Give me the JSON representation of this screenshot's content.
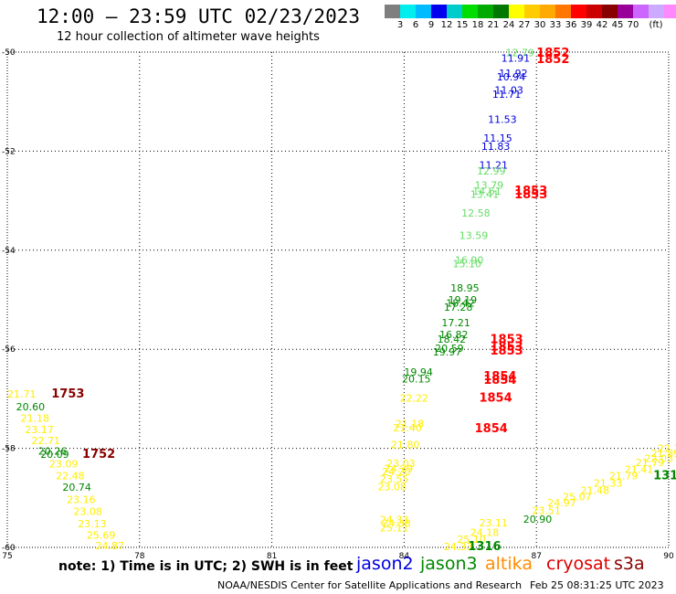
{
  "title": "12:00 – 23:59 UTC 02/23/2023",
  "subtitle": "12 hour collection of altimeter wave heights",
  "legend": {
    "colors": [
      "#7f7f7f",
      "#00eeee",
      "#00bbff",
      "#0000ee",
      "#00cccc",
      "#00dd00",
      "#00aa00",
      "#007700",
      "#ffff00",
      "#ffcc00",
      "#ffaa00",
      "#ff7700",
      "#ff0000",
      "#cc0000",
      "#880000",
      "#990099",
      "#cc66ff",
      "#ccaaff",
      "#ff88ff",
      "#000000"
    ],
    "labels": [
      "3",
      "6",
      "9",
      "12",
      "15",
      "18",
      "21",
      "24",
      "27",
      "30",
      "33",
      "36",
      "39",
      "42",
      "45",
      "70",
      "(ft)"
    ]
  },
  "axes": {
    "x_ticks": [
      "75",
      "78",
      "81",
      "84",
      "87",
      "90"
    ],
    "y_ticks": [
      "-50",
      "-52",
      "-54",
      "-56",
      "-58",
      "-60"
    ]
  },
  "annotations": [
    {
      "t": "12.79",
      "c": "#66dd66",
      "lon": 86.3,
      "lat": -50.01
    },
    {
      "t": "11.91",
      "c": "#0000dd",
      "lon": 86.2,
      "lat": -50.12
    },
    {
      "t": "1852",
      "c": "#ff0000",
      "lon": 87.0,
      "lat": -50.02,
      "big": true
    },
    {
      "t": "1852",
      "c": "#ff0000",
      "lon": 87.0,
      "lat": -50.15,
      "big": true
    },
    {
      "t": "11.92",
      "c": "#0000dd",
      "lon": 86.15,
      "lat": -50.42
    },
    {
      "t": "10.94",
      "c": "#0000dd",
      "lon": 86.1,
      "lat": -50.5
    },
    {
      "t": "11.03",
      "c": "#0000dd",
      "lon": 86.05,
      "lat": -50.77
    },
    {
      "t": "11.71",
      "c": "#0000dd",
      "lon": 86.0,
      "lat": -50.85
    },
    {
      "t": "11.53",
      "c": "#0000dd",
      "lon": 85.9,
      "lat": -51.36
    },
    {
      "t": "11.15",
      "c": "#0000dd",
      "lon": 85.8,
      "lat": -51.73
    },
    {
      "t": "11.83",
      "c": "#0000dd",
      "lon": 85.75,
      "lat": -51.9
    },
    {
      "t": "11.21",
      "c": "#0000dd",
      "lon": 85.7,
      "lat": -52.28
    },
    {
      "t": "12.99",
      "c": "#66dd66",
      "lon": 85.65,
      "lat": -52.4
    },
    {
      "t": "13.79",
      "c": "#66dd66",
      "lon": 85.6,
      "lat": -52.68
    },
    {
      "t": "14.61",
      "c": "#66dd66",
      "lon": 85.55,
      "lat": -52.8
    },
    {
      "t": "13.41",
      "c": "#66dd66",
      "lon": 85.5,
      "lat": -52.87
    },
    {
      "t": "1853",
      "c": "#ff0000",
      "lon": 86.5,
      "lat": -52.8,
      "big": true
    },
    {
      "t": "1853",
      "c": "#ff0000",
      "lon": 86.5,
      "lat": -52.88,
      "big": true
    },
    {
      "t": "12.58",
      "c": "#66dd66",
      "lon": 85.3,
      "lat": -53.25
    },
    {
      "t": "13.59",
      "c": "#66dd66",
      "lon": 85.25,
      "lat": -53.7
    },
    {
      "t": "16.90",
      "c": "#66dd66",
      "lon": 85.15,
      "lat": -54.2
    },
    {
      "t": "15.10",
      "c": "#66dd66",
      "lon": 85.1,
      "lat": -54.27
    },
    {
      "t": "18.95",
      "c": "#008800",
      "lon": 85.05,
      "lat": -54.76
    },
    {
      "t": "19.19",
      "c": "#008800",
      "lon": 85.0,
      "lat": -55.0
    },
    {
      "t": "18.42",
      "c": "#008800",
      "lon": 84.95,
      "lat": -55.06
    },
    {
      "t": "17.28",
      "c": "#008800",
      "lon": 84.9,
      "lat": -55.15
    },
    {
      "t": "17.21",
      "c": "#008800",
      "lon": 84.85,
      "lat": -55.46
    },
    {
      "t": "16.82",
      "c": "#008800",
      "lon": 84.8,
      "lat": -55.7
    },
    {
      "t": "18.42",
      "c": "#008800",
      "lon": 84.75,
      "lat": -55.79
    },
    {
      "t": "20.59",
      "c": "#008800",
      "lon": 84.7,
      "lat": -55.98
    },
    {
      "t": "19.97",
      "c": "#008800",
      "lon": 84.65,
      "lat": -56.05
    },
    {
      "t": "1853",
      "c": "#ff0000",
      "lon": 85.95,
      "lat": -55.8,
      "big": true
    },
    {
      "t": "1853",
      "c": "#ff0000",
      "lon": 85.95,
      "lat": -55.95,
      "big": true
    },
    {
      "t": "1853",
      "c": "#ff0000",
      "lon": 85.95,
      "lat": -56.03,
      "big": true
    },
    {
      "t": "19.94",
      "c": "#008800",
      "lon": 84.0,
      "lat": -56.46
    },
    {
      "t": "20.15",
      "c": "#008800",
      "lon": 83.95,
      "lat": -56.6
    },
    {
      "t": "1854",
      "c": "#ff0000",
      "lon": 85.8,
      "lat": -56.55,
      "big": true
    },
    {
      "t": "1854",
      "c": "#ff0000",
      "lon": 85.8,
      "lat": -56.62,
      "big": true
    },
    {
      "t": "22.22",
      "c": "#ffee00",
      "lon": 83.9,
      "lat": -56.98
    },
    {
      "t": "1854",
      "c": "#ff0000",
      "lon": 85.7,
      "lat": -56.98,
      "big": true
    },
    {
      "t": "21.18",
      "c": "#ffee00",
      "lon": 83.8,
      "lat": -57.5
    },
    {
      "t": "21.40",
      "c": "#ffee00",
      "lon": 83.75,
      "lat": -57.58
    },
    {
      "t": "1854",
      "c": "#ff0000",
      "lon": 85.6,
      "lat": -57.6,
      "big": true
    },
    {
      "t": "21.80",
      "c": "#ffee00",
      "lon": 83.7,
      "lat": -57.92
    },
    {
      "t": "23.03",
      "c": "#ffee00",
      "lon": 83.6,
      "lat": -58.3
    },
    {
      "t": "24.39",
      "c": "#ffee00",
      "lon": 83.55,
      "lat": -58.4
    },
    {
      "t": "24.20",
      "c": "#ffee00",
      "lon": 83.5,
      "lat": -58.47
    },
    {
      "t": "23.55",
      "c": "#ffee00",
      "lon": 83.45,
      "lat": -58.62
    },
    {
      "t": "23.08",
      "c": "#ffee00",
      "lon": 83.4,
      "lat": -58.77
    },
    {
      "t": "24.33",
      "c": "#ffee00",
      "lon": 83.45,
      "lat": -59.44
    },
    {
      "t": "24.38",
      "c": "#ffee00",
      "lon": 83.5,
      "lat": -59.51
    },
    {
      "t": "25.11",
      "c": "#ffee00",
      "lon": 83.45,
      "lat": -59.6
    },
    {
      "t": "21.71",
      "c": "#ffee00",
      "lon": 75.0,
      "lat": -56.9
    },
    {
      "t": "1753",
      "c": "#880000",
      "lon": 76.0,
      "lat": -56.9,
      "big": true
    },
    {
      "t": "20.60",
      "c": "#008800",
      "lon": 75.2,
      "lat": -57.16
    },
    {
      "t": "21.18",
      "c": "#ffee00",
      "lon": 75.3,
      "lat": -57.39
    },
    {
      "t": "23.17",
      "c": "#ffee00",
      "lon": 75.4,
      "lat": -57.62
    },
    {
      "t": "22.71",
      "c": "#ffee00",
      "lon": 75.55,
      "lat": -57.84
    },
    {
      "t": "20.26",
      "c": "#008800",
      "lon": 75.7,
      "lat": -58.05
    },
    {
      "t": "20.09",
      "c": "#008800",
      "lon": 75.75,
      "lat": -58.12
    },
    {
      "t": "1752",
      "c": "#880000",
      "lon": 76.7,
      "lat": -58.12,
      "big": true
    },
    {
      "t": "23.09",
      "c": "#ffee00",
      "lon": 75.95,
      "lat": -58.31
    },
    {
      "t": "22.48",
      "c": "#ffee00",
      "lon": 76.1,
      "lat": -58.55
    },
    {
      "t": "20.74",
      "c": "#008800",
      "lon": 76.25,
      "lat": -58.78
    },
    {
      "t": "23.16",
      "c": "#ffee00",
      "lon": 76.35,
      "lat": -59.03
    },
    {
      "t": "23.08",
      "c": "#ffee00",
      "lon": 76.5,
      "lat": -59.27
    },
    {
      "t": "23.13",
      "c": "#ffee00",
      "lon": 76.6,
      "lat": -59.52
    },
    {
      "t": "25.69",
      "c": "#ffee00",
      "lon": 76.8,
      "lat": -59.75
    },
    {
      "t": "24.87",
      "c": "#ffee00",
      "lon": 77.0,
      "lat": -59.96
    },
    {
      "t": "24.33",
      "c": "#ffee00",
      "lon": 84.9,
      "lat": -59.98
    },
    {
      "t": "25.10",
      "c": "#ffee00",
      "lon": 85.2,
      "lat": -59.83
    },
    {
      "t": "1316",
      "c": "#008800",
      "lon": 85.45,
      "lat": -59.98,
      "big": true
    },
    {
      "t": "24.18",
      "c": "#ffee00",
      "lon": 85.5,
      "lat": -59.7
    },
    {
      "t": "23.11",
      "c": "#ffee00",
      "lon": 85.7,
      "lat": -59.5
    },
    {
      "t": "20.90",
      "c": "#008800",
      "lon": 86.7,
      "lat": -59.43
    },
    {
      "t": "23.51",
      "c": "#ffee00",
      "lon": 86.9,
      "lat": -59.25
    },
    {
      "t": "24.97",
      "c": "#ffee00",
      "lon": 87.25,
      "lat": -59.1
    },
    {
      "t": "25.07",
      "c": "#ffee00",
      "lon": 87.6,
      "lat": -58.98
    },
    {
      "t": "21.48",
      "c": "#ffee00",
      "lon": 88.0,
      "lat": -58.85
    },
    {
      "t": "21.33",
      "c": "#ffee00",
      "lon": 88.3,
      "lat": -58.7
    },
    {
      "t": "21.79",
      "c": "#ffee00",
      "lon": 88.65,
      "lat": -58.55
    },
    {
      "t": "21.41",
      "c": "#ffee00",
      "lon": 89.0,
      "lat": -58.42
    },
    {
      "t": "21.79",
      "c": "#ffee00",
      "lon": 89.25,
      "lat": -58.28
    },
    {
      "t": "22.03",
      "c": "#ffee00",
      "lon": 89.45,
      "lat": -58.2
    },
    {
      "t": "21.89",
      "c": "#ffee00",
      "lon": 89.6,
      "lat": -58.1
    },
    {
      "t": "22.11",
      "c": "#ffee00",
      "lon": 89.75,
      "lat": -58.0
    },
    {
      "t": "1316",
      "c": "#008800",
      "lon": 89.65,
      "lat": -58.55,
      "big": true
    }
  ],
  "footer": {
    "note": "note: 1) Time is in UTC; 2) SWH is in feet",
    "satellites": {
      "jason2": "jason2",
      "jason3": "jason3",
      "altika": "altika",
      "cryosat": "cryosat",
      "s3a": "s3a"
    },
    "credit": "NOAA/NESDIS Center for Satellite Applications and Research",
    "stamp": "Feb 25 08:31:25 UTC 2023"
  }
}
